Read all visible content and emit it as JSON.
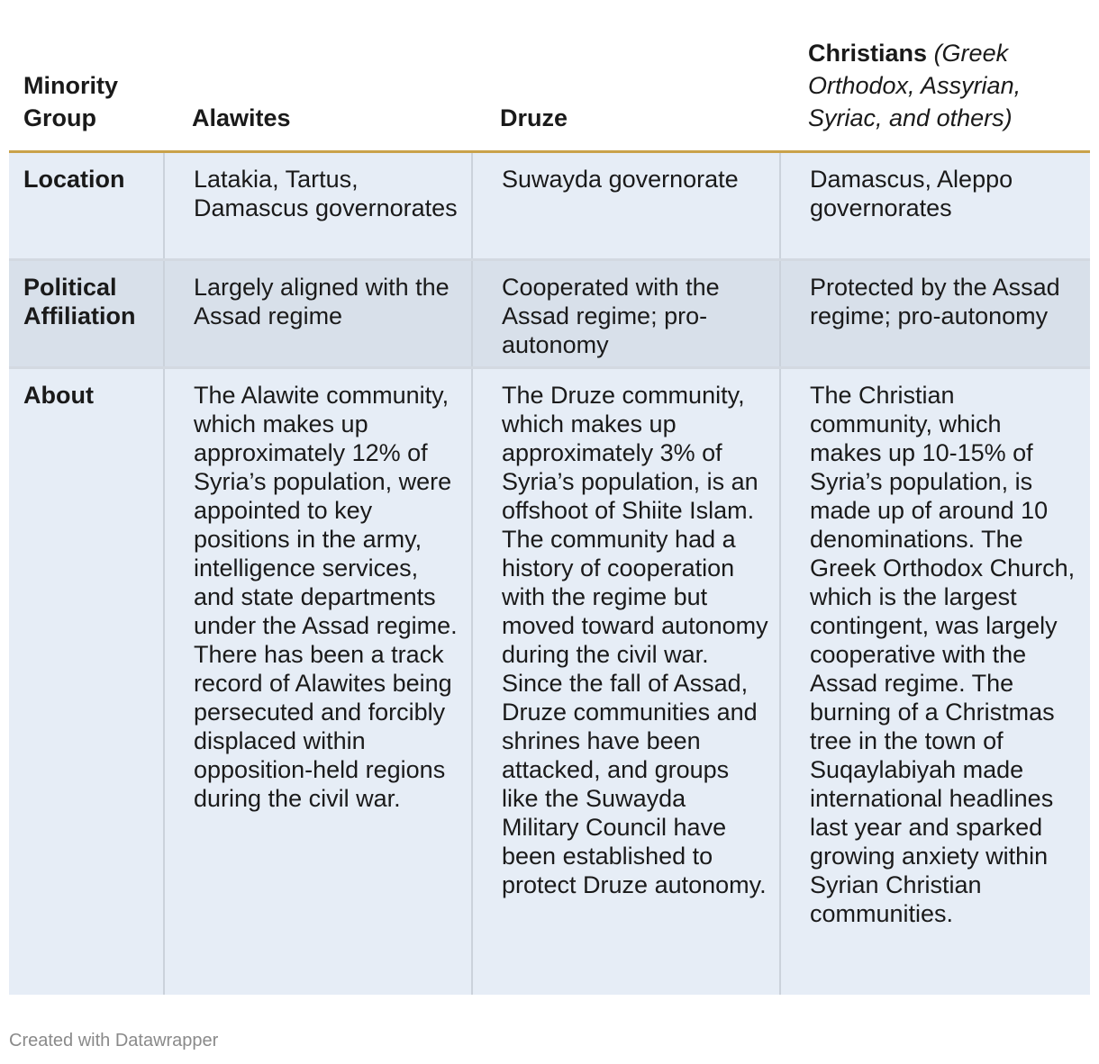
{
  "header": {
    "group_label": "Minority Group",
    "columns": [
      {
        "name": "Alawites",
        "sub": ""
      },
      {
        "name": "Druze",
        "sub": ""
      },
      {
        "name": "Christians",
        "sub": "(Greek Orthodox, Assyrian, Syriac, and others)"
      }
    ]
  },
  "rows": [
    {
      "label": "Location",
      "values": [
        "Latakia, Tartus, Damascus governorates",
        "Suwayda governorate",
        "Damascus, Aleppo governorates"
      ]
    },
    {
      "label": "Political Affiliation",
      "values": [
        "Largely aligned with the Assad regime",
        "Cooperated with the Assad regime; pro-autonomy",
        "Protected by the Assad regime; pro-autonomy"
      ]
    },
    {
      "label": "About",
      "values": [
        "The Alawite community, which makes up approximately 12% of Syria’s population, were appointed to key positions in the army, intelligence services, and state departments under the Assad regime. There has been a track record of Alawites being persecuted and forcibly displaced within opposition-held regions during the civil war.",
        "The Druze community, which makes up approximately 3% of Syria’s population, is an offshoot of Shiite Islam. The community had a history of cooperation with the regime but moved toward autonomy during the civil war. Since the fall of Assad, Druze communities and shrines have been attacked, and groups like the Suwayda Military Council have been established to protect Druze autonomy.",
        "The Christian community, which makes up 10-15% of Syria’s population, is made up of around 10 denominations. The Greek Orthodox Church, which is the largest contingent, was largely cooperative with the Assad regime. The burning of a Christmas tree in the town of Suqaylabiyah made international headlines last year and sparked growing anxiety within Syrian Christian communities."
      ]
    }
  ],
  "footer": {
    "credit": "Created with Datawrapper"
  }
}
